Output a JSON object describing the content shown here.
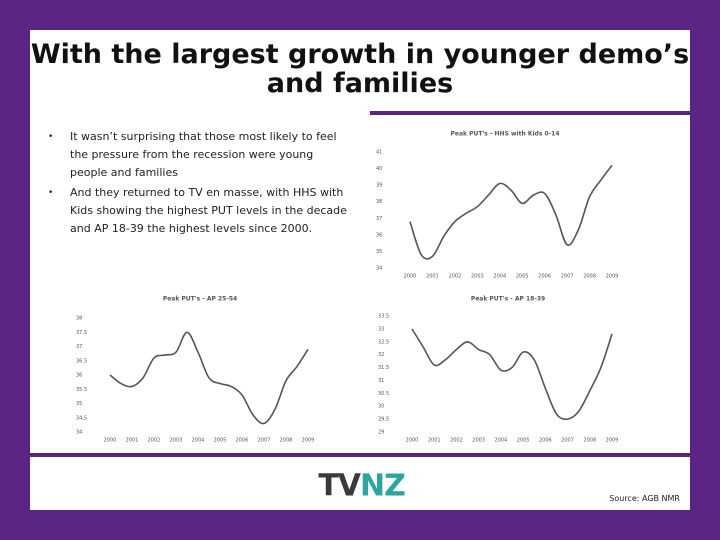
{
  "title": "With the largest growth in younger demo’s and families",
  "bullets": [
    "It wasn’t surprising that those most likely to feel the pressure from the recession were young people and families",
    "And they returned to TV en masse, with HHS with Kids showing the highest PUT levels in the decade and AP 18-39 the highest levels since 2000."
  ],
  "logo": [
    "TV",
    "NZ"
  ],
  "source": "Source: AGB NMR",
  "chart_data": [
    {
      "type": "line",
      "title": "Peak PUT's - HHS with Kids 0-14",
      "x": [
        2000,
        2000.5,
        2001,
        2001.5,
        2002,
        2002.5,
        2003,
        2003.5,
        2004,
        2004.5,
        2005,
        2005.5,
        2006,
        2006.5,
        2007,
        2007.5,
        2008,
        2008.5,
        2009
      ],
      "series": [
        {
          "name": "HHS with Kids 0-14",
          "color": "#555555",
          "values": [
            36.8,
            34.8,
            34.7,
            35.9,
            36.8,
            37.3,
            37.7,
            38.4,
            39.1,
            38.7,
            37.9,
            38.4,
            38.5,
            37.2,
            35.4,
            36.3,
            38.3,
            39.3,
            40.2
          ]
        }
      ],
      "xlim": [
        2000,
        2009
      ],
      "xticks": [
        2000,
        2001,
        2002,
        2003,
        2004,
        2005,
        2006,
        2007,
        2008,
        2009
      ],
      "ylim": [
        34,
        41
      ],
      "yticks": [
        34,
        35,
        36,
        37,
        38,
        39,
        40,
        41
      ]
    },
    {
      "type": "line",
      "title": "Peak PUT's - AP 25-54",
      "x": [
        2000,
        2000.5,
        2001,
        2001.5,
        2002,
        2002.5,
        2003,
        2003.5,
        2004,
        2004.5,
        2005,
        2005.5,
        2006,
        2006.5,
        2007,
        2007.5,
        2008,
        2008.5,
        2009
      ],
      "series": [
        {
          "name": "AP 25-54",
          "color": "#555555",
          "values": [
            36.0,
            35.7,
            35.6,
            35.9,
            36.6,
            36.7,
            36.8,
            37.5,
            36.8,
            35.9,
            35.7,
            35.6,
            35.3,
            34.6,
            34.3,
            34.8,
            35.8,
            36.3,
            36.9
          ]
        }
      ],
      "xlim": [
        2000,
        2009
      ],
      "xticks": [
        2000,
        2001,
        2002,
        2003,
        2004,
        2005,
        2006,
        2007,
        2008,
        2009
      ],
      "ylim": [
        34,
        38
      ],
      "yticks": [
        34,
        34.5,
        35,
        35.5,
        36,
        36.5,
        37,
        37.5,
        38
      ]
    },
    {
      "type": "line",
      "title": "Peak PUT's - AP 18-39",
      "x": [
        2000,
        2000.5,
        2001,
        2001.5,
        2002,
        2002.5,
        2003,
        2003.5,
        2004,
        2004.5,
        2005,
        2005.5,
        2006,
        2006.5,
        2007,
        2007.5,
        2008,
        2008.5,
        2009
      ],
      "series": [
        {
          "name": "AP 18-39",
          "color": "#555555",
          "values": [
            33.0,
            32.3,
            31.6,
            31.8,
            32.2,
            32.5,
            32.2,
            32.0,
            31.4,
            31.5,
            32.1,
            31.8,
            30.7,
            29.7,
            29.5,
            29.8,
            30.6,
            31.5,
            32.8
          ]
        }
      ],
      "xlim": [
        2000,
        2009
      ],
      "xticks": [
        2000,
        2001,
        2002,
        2003,
        2004,
        2005,
        2006,
        2007,
        2008,
        2009
      ],
      "ylim": [
        29,
        33.5
      ],
      "yticks": [
        29,
        29.5,
        30,
        30.5,
        31,
        31.5,
        32,
        32.5,
        33,
        33.5
      ]
    }
  ]
}
